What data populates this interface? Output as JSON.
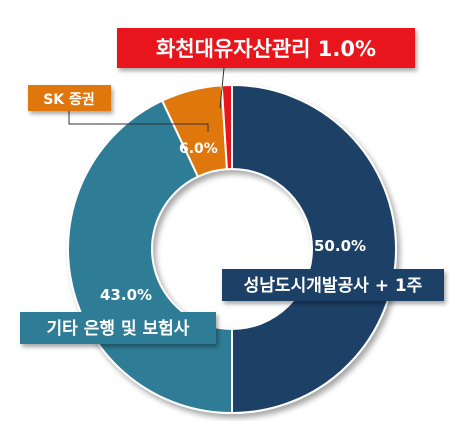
{
  "chart_data": {
    "type": "pie",
    "variant": "donut",
    "start_angle_deg": 0,
    "direction": "clockwise",
    "slices": [
      {
        "label": "성남도시개발공사 + 1주",
        "value": 50.0,
        "value_label": "50.0%",
        "color": "#1F3F66"
      },
      {
        "label": "기타 은행 및 보험사",
        "value": 43.0,
        "value_label": "43.0%",
        "color": "#2E7B96"
      },
      {
        "label": "SK 증권",
        "value": 6.0,
        "value_label": "6.0%",
        "color": "#E0770E"
      },
      {
        "label": "화천대유자산관리 1.0%",
        "value": 1.0,
        "value_label": "",
        "color": "#E8151D"
      }
    ]
  }
}
